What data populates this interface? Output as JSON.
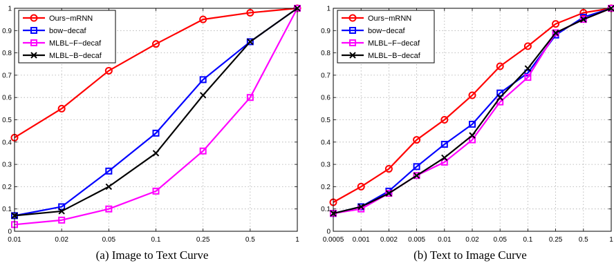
{
  "chart_data": [
    {
      "type": "line",
      "caption": "(a) Image to Text Curve",
      "categories": [
        "0.01",
        "0.02",
        "0.05",
        "0.1",
        "0.25",
        "0.5",
        "1"
      ],
      "ylim": [
        0,
        1
      ],
      "yticks": [
        "0",
        "0.1",
        "0.2",
        "0.3",
        "0.4",
        "0.5",
        "0.6",
        "0.7",
        "0.8",
        "0.9",
        "1"
      ],
      "grid": true,
      "legend_position": "top-left",
      "series": [
        {
          "name": "Ours−mRNN",
          "color": "#ff0000",
          "marker": "circle",
          "values": [
            0.42,
            0.55,
            0.72,
            0.84,
            0.95,
            0.98,
            1.0
          ]
        },
        {
          "name": "bow−decaf",
          "color": "#0000ff",
          "marker": "square",
          "values": [
            0.07,
            0.11,
            0.27,
            0.44,
            0.68,
            0.85,
            1.0
          ]
        },
        {
          "name": "MLBL−F−decaf",
          "color": "#ff00ff",
          "marker": "square",
          "values": [
            0.03,
            0.05,
            0.1,
            0.18,
            0.36,
            0.6,
            1.0
          ]
        },
        {
          "name": "MLBL−B−decaf",
          "color": "#000000",
          "marker": "x",
          "values": [
            0.07,
            0.09,
            0.2,
            0.35,
            0.61,
            0.85,
            1.0
          ]
        }
      ]
    },
    {
      "type": "line",
      "caption": "(b) Text to Image Curve",
      "categories": [
        "0.0005",
        "0.001",
        "0.002",
        "0.005",
        "0.01",
        "0.02",
        "0.05",
        "0.1",
        "0.25",
        "0.5",
        "1"
      ],
      "ylim": [
        0,
        1
      ],
      "yticks": [
        "0",
        "0.1",
        "0.2",
        "0.3",
        "0.4",
        "0.5",
        "0.6",
        "0.7",
        "0.8",
        "0.9",
        "1"
      ],
      "grid": true,
      "legend_position": "top-left",
      "series": [
        {
          "name": "Ours−mRNN",
          "color": "#ff0000",
          "marker": "circle",
          "values": [
            0.13,
            0.2,
            0.28,
            0.41,
            0.5,
            0.61,
            0.74,
            0.83,
            0.93,
            0.98,
            1.0
          ]
        },
        {
          "name": "bow−decaf",
          "color": "#0000ff",
          "marker": "square",
          "values": [
            0.08,
            0.11,
            0.18,
            0.29,
            0.39,
            0.48,
            0.62,
            0.71,
            0.88,
            0.96,
            1.0
          ]
        },
        {
          "name": "MLBL−F−decaf",
          "color": "#ff00ff",
          "marker": "square",
          "values": [
            0.08,
            0.1,
            0.17,
            0.25,
            0.31,
            0.41,
            0.58,
            0.69,
            0.89,
            0.95,
            1.0
          ]
        },
        {
          "name": "MLBL−B−decaf",
          "color": "#000000",
          "marker": "x",
          "values": [
            0.08,
            0.11,
            0.17,
            0.25,
            0.33,
            0.43,
            0.6,
            0.73,
            0.89,
            0.95,
            1.0
          ]
        }
      ]
    }
  ]
}
